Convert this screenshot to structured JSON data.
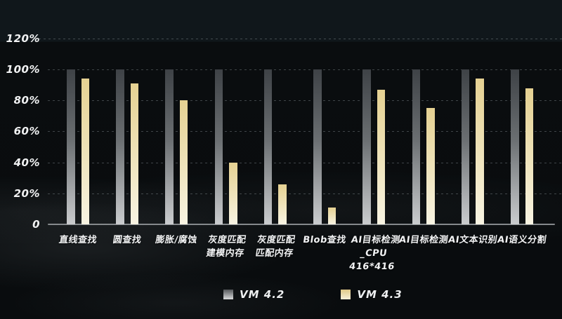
{
  "chart_data": {
    "type": "bar",
    "title": "",
    "categories": [
      "直线查找",
      "圆查找",
      "膨胀/腐蚀",
      "灰度匹配\n建模内存",
      "灰度匹配\n匹配内存",
      "Blob查找",
      "AI目标检测\n_CPU\n416*416",
      "AI目标检测",
      "AI文本识别",
      "AI语义分割"
    ],
    "series": [
      {
        "name": "VM 4.2",
        "values": [
          100,
          100,
          100,
          100,
          100,
          100,
          100,
          100,
          100,
          100
        ]
      },
      {
        "name": "VM 4.3",
        "values": [
          94,
          91,
          80,
          40,
          26,
          11,
          87,
          75,
          94,
          88
        ]
      }
    ],
    "unit": "%",
    "y_ticks": [
      "120%",
      "100%",
      "80%",
      "60%",
      "40%",
      "20%",
      "0"
    ],
    "y_tick_values": [
      120,
      100,
      80,
      60,
      40,
      20,
      0
    ],
    "ylim": [
      0,
      120
    ],
    "grid": "horizontal-dashed",
    "legend_position": "bottom-center"
  },
  "colors": {
    "background_top_band": "#10171b",
    "background": "#0a0d0f",
    "vm42_bar_top": "#3e4246",
    "vm42_bar_bottom": "#caccce",
    "vm43_bar_top": "#e5d192",
    "vm43_bar_bottom": "#f8f4e3",
    "gridline": "#3a4043",
    "axis_line": "#85898c",
    "text": "#f1f2f3"
  }
}
